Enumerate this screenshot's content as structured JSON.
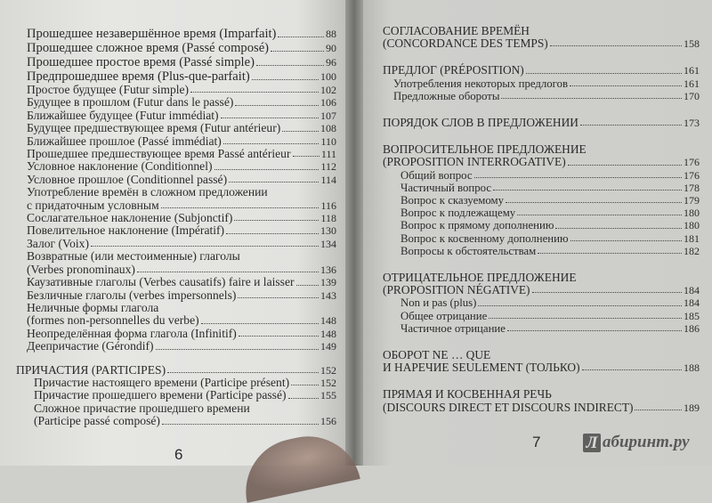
{
  "left_page": {
    "folio": "6",
    "rows": [
      {
        "text": "Прошедшее незавершённое время (Imparfait)",
        "page": "88",
        "indent": 1,
        "big": true
      },
      {
        "text": "Прошедшее сложное время (Passé composé)",
        "page": "90",
        "indent": 1,
        "big": true
      },
      {
        "text": "Прошедшее простое время (Passé simple)",
        "page": "96",
        "indent": 1,
        "big": true
      },
      {
        "text": "Предпрошедшее время (Plus-que-parfait)",
        "page": "100",
        "indent": 1,
        "big": true
      },
      {
        "text": "Простое будущее (Futur simple)",
        "page": "102",
        "indent": 1
      },
      {
        "text": "Будущее в прошлом (Futur dans le passé)",
        "page": "106",
        "indent": 1
      },
      {
        "text": "Ближайшее будущее (Futur immédiat)",
        "page": "107",
        "indent": 1
      },
      {
        "text": "Будущее предшествующее время (Futur antérieur)",
        "page": "108",
        "indent": 1
      },
      {
        "text": "Ближайшее прошлое (Passé immédiat)",
        "page": "110",
        "indent": 1
      },
      {
        "text": "Прошедшее предшествующее время Passé antérieur",
        "page": "111",
        "indent": 1
      },
      {
        "text": "Условное наклонение (Conditionnel)",
        "page": "112",
        "indent": 1
      },
      {
        "text": "Условное прошлое (Conditionnel passé)",
        "page": "114",
        "indent": 1
      },
      {
        "text": "Употребление времён в сложном предложении",
        "page": null,
        "indent": 1
      },
      {
        "text": "с придаточным условным",
        "page": "116",
        "indent": 1
      },
      {
        "text": "Сослагательное наклонение (Subjonctif)",
        "page": "118",
        "indent": 1
      },
      {
        "text": "Повелительное наклонение (Impératif)",
        "page": "130",
        "indent": 1
      },
      {
        "text": "Залог (Voix)",
        "page": "134",
        "indent": 1
      },
      {
        "text": "Возвратные (или местоименные) глаголы",
        "page": null,
        "indent": 1
      },
      {
        "text": "(Verbes pronominaux)",
        "page": "136",
        "indent": 1
      },
      {
        "text": "Каузативные глаголы (Verbes causatifs) faire и laisser",
        "page": "139",
        "indent": 1
      },
      {
        "text": "Безличные глаголы (verbes impersonnels)",
        "page": "143",
        "indent": 1
      },
      {
        "text": "Неличные формы глагола",
        "page": null,
        "indent": 1
      },
      {
        "text": "(formes non-personnelles du verbe)",
        "page": "148",
        "indent": 1
      },
      {
        "text": "Неопределённая форма глагола (Infinitif)",
        "page": "148",
        "indent": 1
      },
      {
        "text": "Деепричастие (Gérondif)",
        "page": "149",
        "indent": 1
      },
      {
        "gap": true
      },
      {
        "text": "ПРИЧАСТИЯ (PARTICIPES)",
        "page": "152",
        "indent": 0
      },
      {
        "text": "Причастие настоящего времени (Participe présent)",
        "page": "152",
        "indent": 2
      },
      {
        "text": "Причастие прошедшего времени (Participe passé)",
        "page": "155",
        "indent": 2
      },
      {
        "text": "Сложное причастие прошедшего времени",
        "page": null,
        "indent": 2
      },
      {
        "text": "(Participe passé composé)",
        "page": "156",
        "indent": 2
      }
    ]
  },
  "right_page": {
    "folio": "7",
    "rows": [
      {
        "text": "СОГЛАСОВАНИЕ ВРЕМЁН",
        "page": null,
        "indent": 0,
        "head": true
      },
      {
        "text": "(CONCORDANCE DES TEMPS)",
        "page": "158",
        "indent": 0,
        "head": true
      },
      {
        "gap": true
      },
      {
        "text": "ПРЕДЛОГ (PRÉPOSITION)",
        "page": "161",
        "indent": 0,
        "head": true
      },
      {
        "text": "Употребления некоторых предлогов",
        "page": "161",
        "indent": 1
      },
      {
        "text": "Предложные обороты",
        "page": "170",
        "indent": 1
      },
      {
        "gap": true
      },
      {
        "text": "ПОРЯДОК СЛОВ В ПРЕДЛОЖЕНИИ",
        "page": "173",
        "indent": 0,
        "head": true
      },
      {
        "gap": true
      },
      {
        "text": "ВОПРОСИТЕЛЬНОЕ ПРЕДЛОЖЕНИЕ",
        "page": null,
        "indent": 0,
        "head": true
      },
      {
        "text": "(PROPOSITION INTERROGATIVE)",
        "page": "176",
        "indent": 0,
        "head": true
      },
      {
        "text": "Общий вопрос",
        "page": "176",
        "indent": 2
      },
      {
        "text": "Частичный вопрос",
        "page": "178",
        "indent": 2
      },
      {
        "text": "Вопрос к сказуемому",
        "page": "179",
        "indent": 2
      },
      {
        "text": "Вопрос к подлежащему",
        "page": "180",
        "indent": 2
      },
      {
        "text": "Вопрос к прямому дополнению",
        "page": "180",
        "indent": 2
      },
      {
        "text": "Вопрос к косвенному дополнению",
        "page": "181",
        "indent": 2
      },
      {
        "text": "Вопросы к обстоятельствам",
        "page": "182",
        "indent": 2
      },
      {
        "gap": true
      },
      {
        "text": "ОТРИЦАТЕЛЬНОЕ ПРЕДЛОЖЕНИЕ",
        "page": null,
        "indent": 0,
        "head": true
      },
      {
        "text": "(PROPOSITION NÉGATIVE)",
        "page": "184",
        "indent": 0,
        "head": true
      },
      {
        "text": "Non и pas (plus)",
        "page": "184",
        "indent": 2
      },
      {
        "text": "Общее отрицание",
        "page": "185",
        "indent": 2
      },
      {
        "text": "Частичное отрицание",
        "page": "186",
        "indent": 2
      },
      {
        "gap": true
      },
      {
        "text": "ОБОРОТ NE … QUE",
        "page": null,
        "indent": 0,
        "head": true
      },
      {
        "text": "И НАРЕЧИЕ SEULEMENT (ТОЛЬКО)",
        "page": "188",
        "indent": 0,
        "head": true
      },
      {
        "gap": true
      },
      {
        "text": "ПРЯМАЯ И КОСВЕННАЯ РЕЧЬ",
        "page": null,
        "indent": 0,
        "head": true
      },
      {
        "text": "(DISCOURS DIRECT ET DISCOURS INDIRECT)",
        "page": "189",
        "indent": 0,
        "head": true
      }
    ]
  },
  "watermark": {
    "mark": "Л",
    "text": "абиринт.ру"
  }
}
